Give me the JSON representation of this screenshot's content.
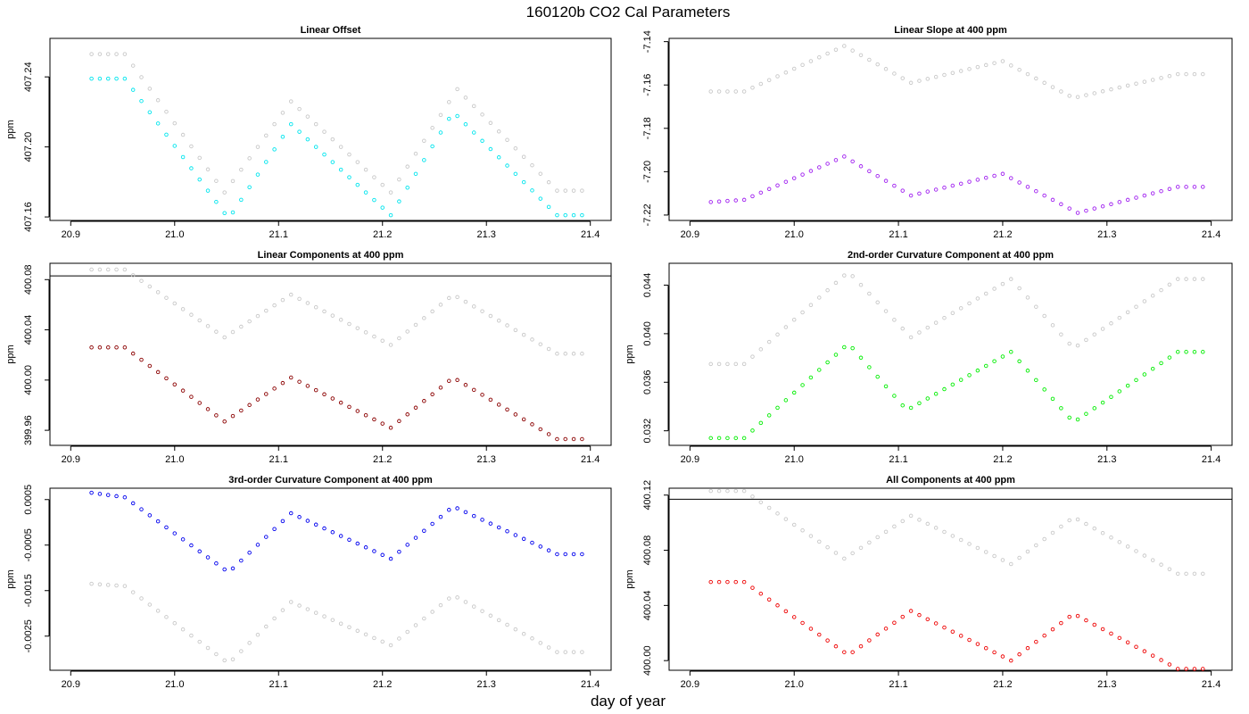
{
  "figure": {
    "title": "160120b   CO2 Cal Parameters",
    "xlabel": "day of year"
  },
  "chart_data": [
    {
      "type": "scatter",
      "title": "Linear Offset",
      "ylabel": "ppm",
      "xlim": [
        20.88,
        21.42
      ],
      "ylim": [
        407.158,
        407.262
      ],
      "xticks": [
        "20.9",
        "21.0",
        "21.1",
        "21.2",
        "21.3",
        "21.4"
      ],
      "yticks": [
        "407.16",
        "407.20",
        "407.24"
      ],
      "hline": null,
      "x_start": 20.92,
      "x_step": 0.008,
      "count": 60,
      "series": [
        {
          "color": "#c8c8c8",
          "keypoints": [
            [
              20.92,
              407.253
            ],
            [
              20.952,
              407.253
            ],
            [
              21.048,
              407.174
            ],
            [
              21.112,
              407.226
            ],
            [
              21.208,
              407.174
            ],
            [
              21.272,
              407.233
            ],
            [
              21.368,
              407.175
            ],
            [
              21.392,
              407.175
            ]
          ]
        },
        {
          "color": "#00e5ee",
          "keypoints": [
            [
              20.92,
              407.239
            ],
            [
              20.952,
              407.239
            ],
            [
              21.052,
              407.159
            ],
            [
              21.112,
              407.213
            ],
            [
              21.208,
              407.161
            ],
            [
              21.268,
              407.22
            ],
            [
              21.368,
              407.161
            ],
            [
              21.392,
              407.161
            ]
          ]
        }
      ]
    },
    {
      "type": "scatter",
      "title": "Linear Slope at 400 ppm",
      "ylabel": "",
      "xlim": [
        20.88,
        21.42
      ],
      "ylim": [
        -7.2225,
        -7.1385
      ],
      "xticks": [
        "20.9",
        "21.0",
        "21.1",
        "21.2",
        "21.3",
        "21.4"
      ],
      "yticks": [
        "-7.22",
        "-7.20",
        "-7.18",
        "-7.16",
        "-7.14"
      ],
      "hline": null,
      "x_start": 20.92,
      "x_step": 0.008,
      "count": 60,
      "series": [
        {
          "color": "#c8c8c8",
          "keypoints": [
            [
              20.92,
              -7.163
            ],
            [
              20.952,
              -7.163
            ],
            [
              21.048,
              -7.142
            ],
            [
              21.112,
              -7.159
            ],
            [
              21.2,
              -7.149
            ],
            [
              21.268,
              -7.166
            ],
            [
              21.368,
              -7.155
            ],
            [
              21.392,
              -7.155
            ]
          ]
        },
        {
          "color": "#a020f0",
          "keypoints": [
            [
              20.92,
              -7.214
            ],
            [
              20.952,
              -7.213
            ],
            [
              21.048,
              -7.193
            ],
            [
              21.112,
              -7.211
            ],
            [
              21.2,
              -7.201
            ],
            [
              21.272,
              -7.219
            ],
            [
              21.368,
              -7.207
            ],
            [
              21.392,
              -7.207
            ]
          ]
        }
      ]
    },
    {
      "type": "scatter",
      "title": "Linear Components at 400 ppm",
      "ylabel": "ppm",
      "xlim": [
        20.88,
        21.42
      ],
      "ylim": [
        399.948,
        400.093
      ],
      "xticks": [
        "20.9",
        "21.0",
        "21.1",
        "21.2",
        "21.3",
        "21.4"
      ],
      "yticks": [
        "399.96",
        "400.00",
        "400.04",
        "400.08"
      ],
      "hline": 400.083,
      "x_start": 20.92,
      "x_step": 0.008,
      "count": 60,
      "series": [
        {
          "color": "#c8c8c8",
          "keypoints": [
            [
              20.92,
              400.088
            ],
            [
              20.952,
              400.088
            ],
            [
              21.048,
              400.034
            ],
            [
              21.112,
              400.068
            ],
            [
              21.208,
              400.028
            ],
            [
              21.268,
              400.068
            ],
            [
              21.368,
              400.021
            ],
            [
              21.392,
              400.021
            ]
          ]
        },
        {
          "color": "#8b0000",
          "keypoints": [
            [
              20.92,
              400.026
            ],
            [
              20.952,
              400.026
            ],
            [
              21.048,
              399.967
            ],
            [
              21.112,
              400.002
            ],
            [
              21.208,
              399.962
            ],
            [
              21.268,
              400.002
            ],
            [
              21.368,
              399.953
            ],
            [
              21.392,
              399.953
            ]
          ]
        }
      ]
    },
    {
      "type": "scatter",
      "title": "2nd-order Curvature Component at 400 ppm",
      "ylabel": "ppm",
      "xlim": [
        20.88,
        21.42
      ],
      "ylim": [
        0.0308,
        0.0458
      ],
      "xticks": [
        "20.9",
        "21.0",
        "21.1",
        "21.2",
        "21.3",
        "21.4"
      ],
      "yticks": [
        "0.032",
        "0.036",
        "0.040",
        "0.044"
      ],
      "hline": null,
      "x_start": 20.92,
      "x_step": 0.008,
      "count": 60,
      "series": [
        {
          "color": "#c8c8c8",
          "keypoints": [
            [
              20.92,
              0.0375
            ],
            [
              20.952,
              0.0375
            ],
            [
              21.052,
              0.0451
            ],
            [
              21.112,
              0.0397
            ],
            [
              21.208,
              0.0445
            ],
            [
              21.268,
              0.0388
            ],
            [
              21.368,
              0.0445
            ],
            [
              21.392,
              0.0445
            ]
          ]
        },
        {
          "color": "#00ee00",
          "keypoints": [
            [
              20.92,
              0.0314
            ],
            [
              20.952,
              0.0314
            ],
            [
              21.052,
              0.0392
            ],
            [
              21.108,
              0.0337
            ],
            [
              21.208,
              0.0385
            ],
            [
              21.268,
              0.0327
            ],
            [
              21.368,
              0.0385
            ],
            [
              21.392,
              0.0385
            ]
          ]
        }
      ]
    },
    {
      "type": "scatter",
      "title": "3rd-order Curvature Component at 400 ppm",
      "ylabel": "ppm",
      "xlim": [
        20.88,
        21.42
      ],
      "ylim": [
        -0.00325,
        0.00075
      ],
      "xticks": [
        "20.9",
        "21.0",
        "21.1",
        "21.2",
        "21.3",
        "21.4"
      ],
      "yticks": [
        "-0.0025",
        "-0.0015",
        "-0.0005",
        "0.0005"
      ],
      "hline": null,
      "x_start": 20.92,
      "x_step": 0.008,
      "count": 60,
      "series": [
        {
          "color": "#c8c8c8",
          "keypoints": [
            [
              20.92,
              -0.00135
            ],
            [
              20.952,
              -0.0014
            ],
            [
              21.052,
              -0.0031
            ],
            [
              21.112,
              -0.00175
            ],
            [
              21.208,
              -0.0027
            ],
            [
              21.268,
              -0.0016
            ],
            [
              21.368,
              -0.00285
            ],
            [
              21.392,
              -0.00285
            ]
          ]
        },
        {
          "color": "#0000ee",
          "keypoints": [
            [
              20.92,
              0.00065
            ],
            [
              20.952,
              0.00055
            ],
            [
              21.052,
              -0.0011
            ],
            [
              21.112,
              0.0002
            ],
            [
              21.208,
              -0.0008
            ],
            [
              21.268,
              0.00035
            ],
            [
              21.368,
              -0.0007
            ],
            [
              21.392,
              -0.0007
            ]
          ]
        }
      ]
    },
    {
      "type": "scatter",
      "title": "All Components at 400 ppm",
      "ylabel": "ppm",
      "xlim": [
        20.88,
        21.42
      ],
      "ylim": [
        399.993,
        400.125
      ],
      "xticks": [
        "20.9",
        "21.0",
        "21.1",
        "21.2",
        "21.3",
        "21.4"
      ],
      "yticks": [
        "400.00",
        "400.04",
        "400.08",
        "400.12"
      ],
      "hline": 400.117,
      "x_start": 20.92,
      "x_step": 0.008,
      "count": 60,
      "series": [
        {
          "color": "#c8c8c8",
          "keypoints": [
            [
              20.92,
              400.123
            ],
            [
              20.952,
              400.123
            ],
            [
              21.048,
              400.074
            ],
            [
              21.112,
              400.105
            ],
            [
              21.208,
              400.07
            ],
            [
              21.268,
              400.104
            ],
            [
              21.368,
              400.063
            ],
            [
              21.392,
              400.063
            ]
          ]
        },
        {
          "color": "#ee0000",
          "keypoints": [
            [
              20.92,
              400.057
            ],
            [
              20.952,
              400.057
            ],
            [
              21.052,
              400.004
            ],
            [
              21.112,
              400.036
            ],
            [
              21.208,
              400.0
            ],
            [
              21.268,
              400.034
            ],
            [
              21.368,
              399.994
            ],
            [
              21.392,
              399.994
            ]
          ]
        }
      ]
    }
  ]
}
